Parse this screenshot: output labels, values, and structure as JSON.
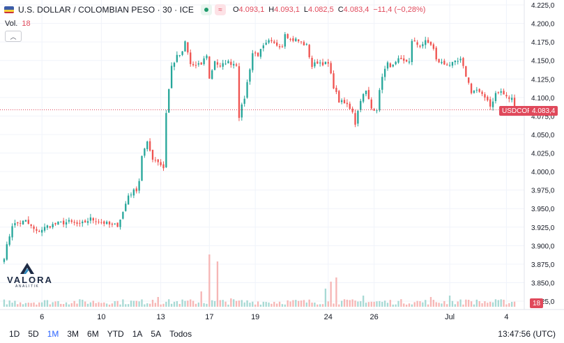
{
  "legend": {
    "title": "U.S. DOLLAR / COLOMBIAN PESO · 30 · ICE",
    "ohlc": [
      {
        "key": "O",
        "value": "4.093,1"
      },
      {
        "key": "H",
        "value": "4.093,1"
      },
      {
        "key": "L",
        "value": "4.082,5"
      },
      {
        "key": "C",
        "value": "4.083,4"
      }
    ],
    "change": "−11,4 (−0,28%)",
    "compare_icon": "compare-icon",
    "market_status_icon": "market-open-icon"
  },
  "volume_legend": {
    "label": "Vol.",
    "value": "18"
  },
  "price_line": {
    "symbol": "USDCOP",
    "value": "4.083,4"
  },
  "volume_tag": "18",
  "watermark": {
    "name": "VALORA",
    "sub": "ANALITIK"
  },
  "timeframes": [
    {
      "label": "1D",
      "active": false
    },
    {
      "label": "5D",
      "active": false
    },
    {
      "label": "1M",
      "active": true
    },
    {
      "label": "3M",
      "active": false
    },
    {
      "label": "6M",
      "active": false
    },
    {
      "label": "YTD",
      "active": false
    },
    {
      "label": "1A",
      "active": false
    },
    {
      "label": "5A",
      "active": false
    },
    {
      "label": "Todos",
      "active": false
    }
  ],
  "clock": "13:47:56 (UTC)",
  "colors": {
    "up": "#26a69a",
    "down": "#ef5350",
    "price_tag": "#e0495b",
    "active": "#2962ff",
    "grid": "#f0f3fa"
  },
  "chart_data": {
    "type": "candlestick",
    "y_ticks": [
      "4.225,0",
      "4.200,0",
      "4.175,0",
      "4.150,0",
      "4.125,0",
      "4.100,0",
      "4.075,0",
      "4.050,0",
      "4.025,0",
      "4.000,0",
      "3.975,0",
      "3.950,0",
      "3.925,0",
      "3.900,0",
      "3.875,0",
      "3.850,0",
      "3.825,0"
    ],
    "ylim": [
      3825,
      4225
    ],
    "x_ticks": [
      {
        "label": "6",
        "idx": 14
      },
      {
        "label": "10",
        "idx": 36
      },
      {
        "label": "13",
        "idx": 58
      },
      {
        "label": "17",
        "idx": 76
      },
      {
        "label": "19",
        "idx": 93
      },
      {
        "label": "24",
        "idx": 120
      },
      {
        "label": "26",
        "idx": 137
      },
      {
        "label": "Jul",
        "idx": 165
      },
      {
        "label": "4",
        "idx": 186
      }
    ],
    "last_price": 4083.4,
    "price_path": [
      [
        0,
        3885
      ],
      [
        3,
        3928
      ],
      [
        8,
        3933
      ],
      [
        12,
        3918
      ],
      [
        16,
        3926
      ],
      [
        20,
        3930
      ],
      [
        24,
        3932
      ],
      [
        28,
        3928
      ],
      [
        32,
        3936
      ],
      [
        36,
        3932
      ],
      [
        40,
        3927
      ],
      [
        42,
        3928
      ],
      [
        44,
        3945
      ],
      [
        46,
        3968
      ],
      [
        49,
        3976
      ],
      [
        50,
        3988
      ],
      [
        51,
        4022
      ],
      [
        53,
        4038
      ],
      [
        55,
        4018
      ],
      [
        57,
        4014
      ],
      [
        59,
        4005
      ],
      [
        60,
        4080
      ],
      [
        62,
        4142
      ],
      [
        64,
        4155
      ],
      [
        66,
        4160
      ],
      [
        67,
        4175
      ],
      [
        69,
        4145
      ],
      [
        71,
        4142
      ],
      [
        73,
        4145
      ],
      [
        75,
        4158
      ],
      [
        76,
        4125
      ],
      [
        78,
        4150
      ],
      [
        80,
        4140
      ],
      [
        82,
        4148
      ],
      [
        86,
        4145
      ],
      [
        87,
        4075
      ],
      [
        89,
        4100
      ],
      [
        90,
        4120
      ],
      [
        92,
        4160
      ],
      [
        94,
        4158
      ],
      [
        96,
        4168
      ],
      [
        98,
        4175
      ],
      [
        100,
        4172
      ],
      [
        103,
        4170
      ],
      [
        104,
        4188
      ],
      [
        106,
        4178
      ],
      [
        108,
        4178
      ],
      [
        112,
        4170
      ],
      [
        114,
        4142
      ],
      [
        116,
        4148
      ],
      [
        120,
        4145
      ],
      [
        122,
        4115
      ],
      [
        124,
        4095
      ],
      [
        127,
        4090
      ],
      [
        129,
        4082
      ],
      [
        130,
        4065
      ],
      [
        132,
        4098
      ],
      [
        134,
        4108
      ],
      [
        136,
        4085
      ],
      [
        138,
        4085
      ],
      [
        140,
        4130
      ],
      [
        142,
        4145
      ],
      [
        144,
        4142
      ],
      [
        146,
        4150
      ],
      [
        148,
        4148
      ],
      [
        150,
        4150
      ],
      [
        151,
        4175
      ],
      [
        154,
        4170
      ],
      [
        156,
        4175
      ],
      [
        158,
        4172
      ],
      [
        159,
        4165
      ],
      [
        160,
        4150
      ],
      [
        163,
        4145
      ],
      [
        166,
        4145
      ],
      [
        169,
        4150
      ],
      [
        171,
        4130
      ],
      [
        173,
        4108
      ],
      [
        175,
        4110
      ],
      [
        177,
        4102
      ],
      [
        179,
        4098
      ],
      [
        180,
        4088
      ],
      [
        182,
        4105
      ],
      [
        184,
        4108
      ],
      [
        186,
        4100
      ],
      [
        188,
        4098
      ],
      [
        189,
        4083.4
      ]
    ]
  }
}
